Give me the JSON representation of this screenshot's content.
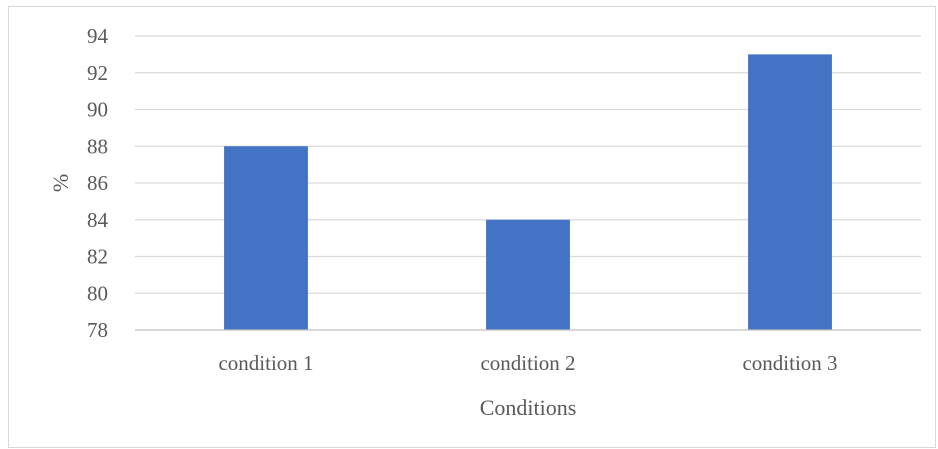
{
  "chart_data": {
    "type": "bar",
    "title": "",
    "categories": [
      "condition 1",
      "condition 2",
      "condition 3"
    ],
    "values": [
      88,
      84,
      93
    ],
    "xlabel": "Conditions",
    "ylabel": "%",
    "ylim": [
      78,
      94
    ],
    "yticks": [
      "78",
      "80",
      "82",
      "84",
      "86",
      "88",
      "90",
      "92",
      "94"
    ],
    "grid": true,
    "legend": "none",
    "bar_color": "#4472c4"
  }
}
